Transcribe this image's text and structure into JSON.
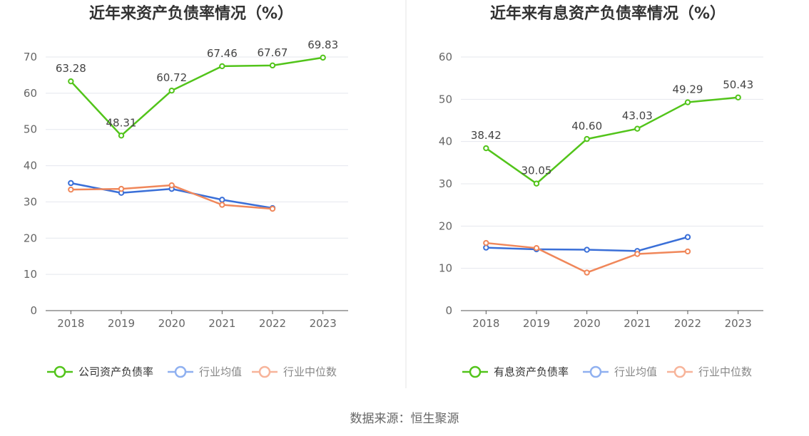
{
  "chart_data": [
    {
      "type": "line",
      "title": "近年来资产负债率情况（%）",
      "categories": [
        "2018",
        "2019",
        "2020",
        "2021",
        "2022",
        "2023"
      ],
      "ylim": [
        0,
        70
      ],
      "yticks": [
        0,
        10,
        20,
        30,
        40,
        50,
        60,
        70
      ],
      "grid": true,
      "legend_position": "bottom",
      "series": [
        {
          "name": "公司资产负债率",
          "values": [
            63.28,
            48.31,
            60.72,
            67.46,
            67.67,
            69.83
          ],
          "color": "#52c41a",
          "labels": [
            "63.28",
            "48.31",
            "60.72",
            "67.46",
            "67.67",
            "69.83"
          ]
        },
        {
          "name": "行业均值",
          "values": [
            35.2,
            32.5,
            33.6,
            30.6,
            28.3,
            null
          ],
          "color": "#3a6fd8"
        },
        {
          "name": "行业中位数",
          "values": [
            33.4,
            33.6,
            34.6,
            29.2,
            28.1,
            null
          ],
          "color": "#f0875a"
        }
      ]
    },
    {
      "type": "line",
      "title": "近年来有息资产负债率情况（%）",
      "categories": [
        "2018",
        "2019",
        "2020",
        "2021",
        "2022",
        "2023"
      ],
      "ylim": [
        0,
        60
      ],
      "yticks": [
        0,
        10,
        20,
        30,
        40,
        50,
        60
      ],
      "grid": true,
      "legend_position": "bottom",
      "series": [
        {
          "name": "有息资产负债率",
          "values": [
            38.42,
            30.05,
            40.6,
            43.03,
            49.29,
            50.43
          ],
          "color": "#52c41a",
          "labels": [
            "38.42",
            "30.05",
            "40.60",
            "43.03",
            "49.29",
            "50.43"
          ]
        },
        {
          "name": "行业均值",
          "values": [
            14.9,
            14.5,
            14.4,
            14.1,
            17.4,
            null
          ],
          "color": "#3a6fd8"
        },
        {
          "name": "行业中位数",
          "values": [
            16.0,
            14.8,
            9.0,
            13.4,
            14.0,
            null
          ],
          "color": "#f0875a"
        }
      ]
    }
  ],
  "source": "数据来源：恒生聚源"
}
